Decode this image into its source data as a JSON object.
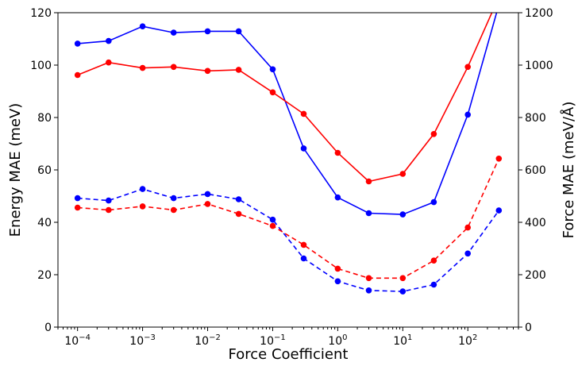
{
  "chart_data": {
    "type": "line",
    "xlabel": "Force Coefficient",
    "ylabel_left": "Energy MAE (meV)",
    "ylabel_right": "Force MAE (meV/Å)",
    "x_scale": "log",
    "xlim": [
      5e-05,
      600
    ],
    "ylim_left": [
      0,
      120
    ],
    "ylim_right": [
      0,
      1200
    ],
    "grid": false,
    "legend": "none",
    "x_ticks": [
      0.0001,
      0.001,
      0.01,
      0.1,
      1,
      10,
      100
    ],
    "x_tick_labels": [
      {
        "base": "10",
        "exp": "−4"
      },
      {
        "base": "10",
        "exp": "−3"
      },
      {
        "base": "10",
        "exp": "−2"
      },
      {
        "base": "10",
        "exp": "−1"
      },
      {
        "base": "10",
        "exp": "0"
      },
      {
        "base": "10",
        "exp": "1"
      },
      {
        "base": "10",
        "exp": "2"
      }
    ],
    "y_left_ticks": [
      "0",
      "20",
      "40",
      "60",
      "80",
      "100",
      "120"
    ],
    "y_right_ticks": [
      "0",
      "200",
      "400",
      "600",
      "800",
      "1000",
      "1200"
    ],
    "x": [
      0.0001,
      0.0003,
      0.001,
      0.003,
      0.01,
      0.03,
      0.1,
      0.3,
      1,
      3,
      10,
      30,
      100,
      300
    ],
    "series": [
      {
        "color": "#0000ff",
        "style": "solid",
        "axis": "right",
        "values": [
          1082,
          1092,
          1148,
          1124,
          1129,
          1129,
          984,
          682,
          495,
          435,
          430,
          477,
          811,
          1230
        ]
      },
      {
        "color": "#ff0000",
        "style": "solid",
        "axis": "right",
        "values": [
          962,
          1010,
          989,
          993,
          978,
          982,
          896,
          814,
          665,
          556,
          585,
          737,
          993,
          1260
        ]
      },
      {
        "color": "#0000ff",
        "style": "dashed",
        "axis": "left",
        "values": [
          49.2,
          48.3,
          52.7,
          49.2,
          50.8,
          48.8,
          41.0,
          26.2,
          17.5,
          14.0,
          13.6,
          16.2,
          28.1,
          44.5
        ]
      },
      {
        "color": "#ff0000",
        "style": "dashed",
        "axis": "left",
        "values": [
          45.6,
          44.7,
          46.1,
          44.7,
          47.0,
          43.2,
          38.6,
          31.4,
          22.3,
          18.7,
          18.7,
          25.4,
          38.0,
          64.3
        ]
      }
    ]
  }
}
